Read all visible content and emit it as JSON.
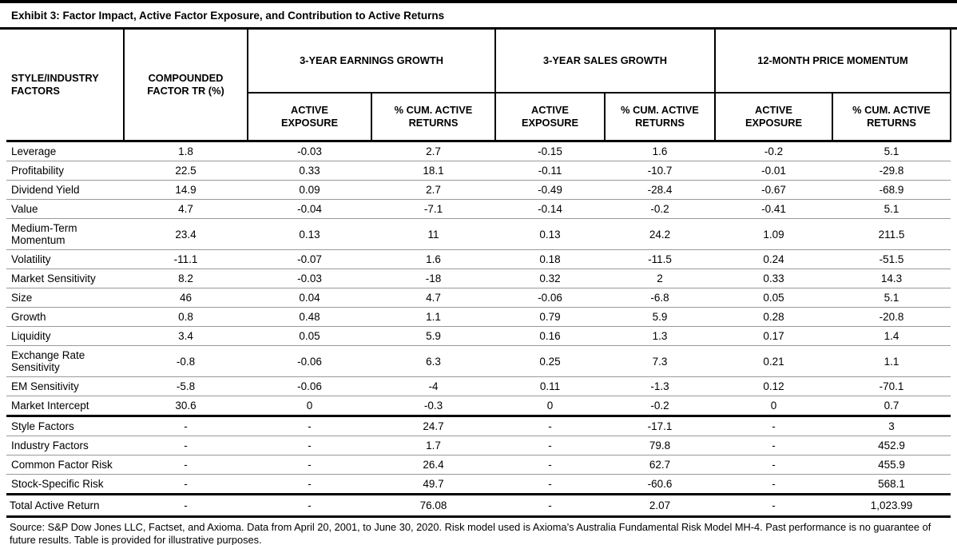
{
  "title": "Exhibit 3: Factor Impact, Active Factor Exposure, and Contribution to Active Returns",
  "table": {
    "header": {
      "factors": "STYLE/INDUSTRY\nFACTORS",
      "compounded": "COMPOUNDED\nFACTOR TR (%)",
      "groups": [
        "3-YEAR EARNINGS GROWTH",
        "3-YEAR SALES GROWTH",
        "12-MONTH PRICE MOMENTUM"
      ],
      "sub_exposure": "ACTIVE\nEXPOSURE",
      "sub_returns": "% CUM. ACTIVE\nRETURNS"
    },
    "rows": [
      [
        "Leverage",
        "1.8",
        "-0.03",
        "2.7",
        "-0.15",
        "1.6",
        "-0.2",
        "5.1"
      ],
      [
        "Profitability",
        "22.5",
        "0.33",
        "18.1",
        "-0.11",
        "-10.7",
        "-0.01",
        "-29.8"
      ],
      [
        "Dividend Yield",
        "14.9",
        "0.09",
        "2.7",
        "-0.49",
        "-28.4",
        "-0.67",
        "-68.9"
      ],
      [
        "Value",
        "4.7",
        "-0.04",
        "-7.1",
        "-0.14",
        "-0.2",
        "-0.41",
        "5.1"
      ],
      [
        "Medium-Term Momentum",
        "23.4",
        "0.13",
        "11",
        "0.13",
        "24.2",
        "1.09",
        "211.5"
      ],
      [
        "Volatility",
        "-11.1",
        "-0.07",
        "1.6",
        "0.18",
        "-11.5",
        "0.24",
        "-51.5"
      ],
      [
        "Market Sensitivity",
        "8.2",
        "-0.03",
        "-18",
        "0.32",
        "2",
        "0.33",
        "14.3"
      ],
      [
        "Size",
        "46",
        "0.04",
        "4.7",
        "-0.06",
        "-6.8",
        "0.05",
        "5.1"
      ],
      [
        "Growth",
        "0.8",
        "0.48",
        "1.1",
        "0.79",
        "5.9",
        "0.28",
        "-20.8"
      ],
      [
        "Liquidity",
        "3.4",
        "0.05",
        "5.9",
        "0.16",
        "1.3",
        "0.17",
        "1.4"
      ],
      [
        "Exchange Rate Sensitivity",
        "-0.8",
        "-0.06",
        "6.3",
        "0.25",
        "7.3",
        "0.21",
        "1.1"
      ],
      [
        "EM Sensitivity",
        "-5.8",
        "-0.06",
        "-4",
        "0.11",
        "-1.3",
        "0.12",
        "-70.1"
      ],
      [
        "Market Intercept",
        "30.6",
        "0",
        "-0.3",
        "0",
        "-0.2",
        "0",
        "0.7"
      ]
    ],
    "summary_rows": [
      [
        "Style Factors",
        "-",
        "-",
        "24.7",
        "-",
        "-17.1",
        "-",
        "3"
      ],
      [
        "Industry Factors",
        "-",
        "-",
        "1.7",
        "-",
        "79.8",
        "-",
        "452.9"
      ],
      [
        "Common Factor Risk",
        "-",
        "-",
        "26.4",
        "-",
        "62.7",
        "-",
        "455.9"
      ],
      [
        "Stock-Specific Risk",
        "-",
        "-",
        "49.7",
        "-",
        "-60.6",
        "-",
        "568.1"
      ]
    ],
    "total_row": [
      "Total Active Return",
      "-",
      "-",
      "76.08",
      "-",
      "2.07",
      "-",
      "1,023.99"
    ]
  },
  "footnote": "Source: S&P Dow Jones LLC, Factset, and Axioma. Data from April 20, 2001, to June 30, 2020. Risk model used is Axioma’s Australia Fundamental Risk Model MH-4. Past performance is no guarantee of future results. Table is provided for illustrative purposes."
}
